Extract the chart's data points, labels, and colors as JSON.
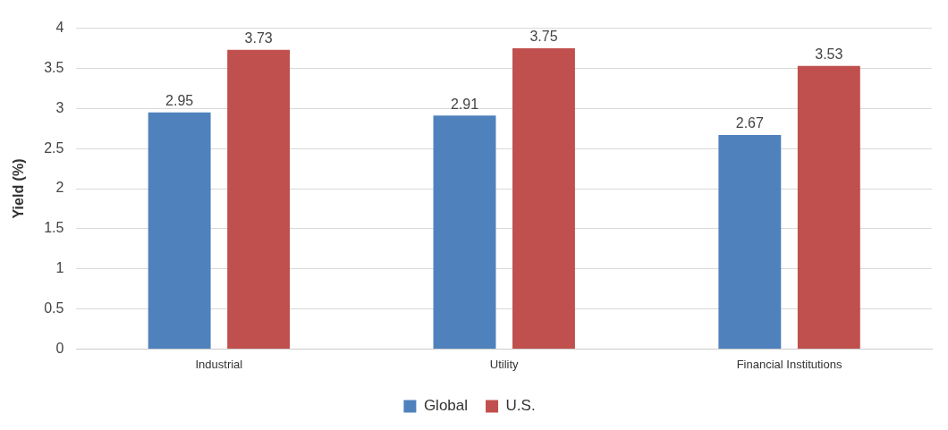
{
  "chart_data": {
    "type": "bar",
    "ylabel": "Yield (%)",
    "categories": [
      "Industrial",
      "Utility",
      "Financial Institutions"
    ],
    "series": [
      {
        "name": "Global",
        "color": "#4f81bd",
        "values": [
          2.95,
          2.91,
          2.67
        ]
      },
      {
        "name": "U.S.",
        "color": "#c0504d",
        "values": [
          3.73,
          3.75,
          3.53
        ]
      }
    ],
    "ylim": [
      0,
      4
    ],
    "yticks": [
      0,
      0.5,
      1,
      1.5,
      2,
      2.5,
      3,
      3.5,
      4
    ],
    "grid": "y",
    "legend": "bottom",
    "data_labels": true
  }
}
